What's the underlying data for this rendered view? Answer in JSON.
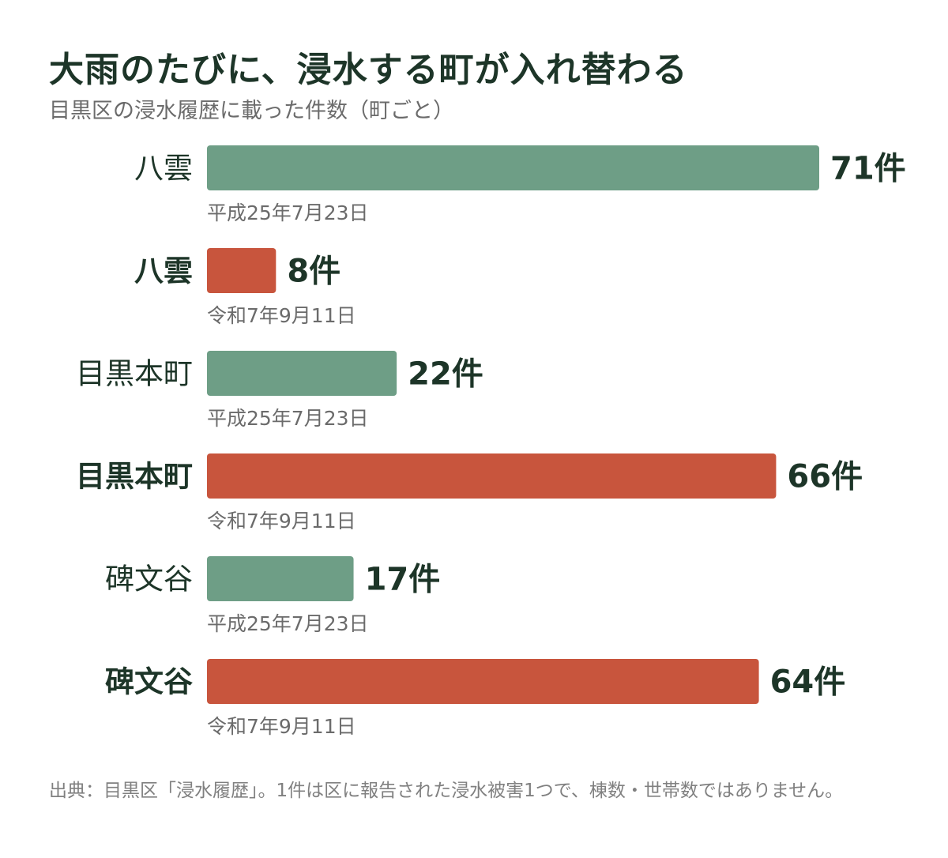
{
  "title": "大雨のたびに、浸水する町が入れ替わる",
  "subtitle": "目黒区の浸水履歴に載った件数（町ごと）",
  "footnote": "出典：目黒区「浸水履歴」。1件は区に報告された浸水被害1つで、棟数・世帯数ではありません。",
  "colors": {
    "older": "#6e9e86",
    "newer": "#c8553d",
    "text": "#1d3528",
    "muted": "#6b6b6b"
  },
  "chart_data": {
    "type": "bar",
    "orientation": "horizontal",
    "value_suffix": "件",
    "xlim": [
      0,
      71
    ],
    "rows": [
      {
        "town": "八雲",
        "date": "平成25年7月23日",
        "value": 71,
        "series": "older"
      },
      {
        "town": "八雲",
        "date": "令和7年9月11日",
        "value": 8,
        "series": "newer"
      },
      {
        "town": "目黒本町",
        "date": "平成25年7月23日",
        "value": 22,
        "series": "older"
      },
      {
        "town": "目黒本町",
        "date": "令和7年9月11日",
        "value": 66,
        "series": "newer"
      },
      {
        "town": "碑文谷",
        "date": "平成25年7月23日",
        "value": 17,
        "series": "older"
      },
      {
        "town": "碑文谷",
        "date": "令和7年9月11日",
        "value": 64,
        "series": "newer"
      }
    ]
  }
}
